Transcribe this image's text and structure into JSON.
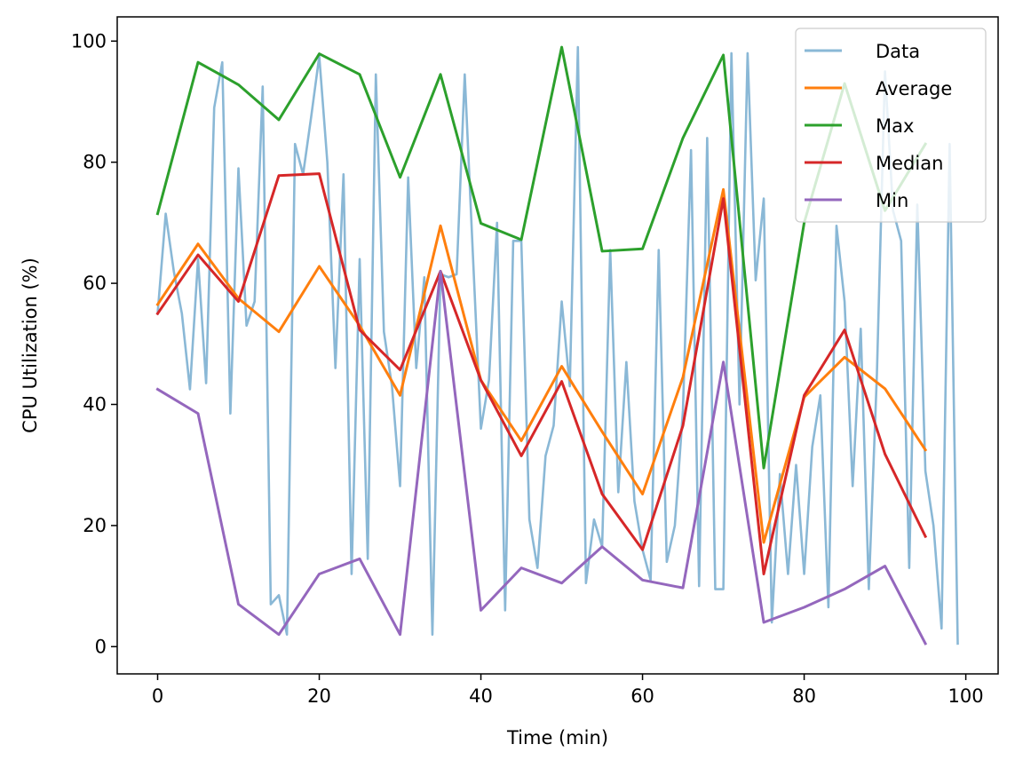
{
  "chart_data": {
    "type": "line",
    "title": "",
    "xlabel": "Time (min)",
    "ylabel": "CPU Utilization (%)",
    "xlim": [
      -5,
      104
    ],
    "ylim": [
      -4.5,
      104
    ],
    "xticks": [
      0,
      20,
      40,
      60,
      80,
      100
    ],
    "yticks": [
      0,
      20,
      40,
      60,
      80,
      100
    ],
    "grid": false,
    "legend_position": "top-right",
    "series": [
      {
        "name": "Data",
        "color": "#8ab8d6",
        "x": [
          0,
          1,
          2,
          3,
          4,
          5,
          6,
          7,
          8,
          9,
          10,
          11,
          12,
          13,
          14,
          15,
          16,
          17,
          18,
          19,
          20,
          21,
          22,
          23,
          24,
          25,
          26,
          27,
          28,
          29,
          30,
          31,
          32,
          33,
          34,
          35,
          36,
          37,
          38,
          39,
          40,
          41,
          42,
          43,
          44,
          45,
          46,
          47,
          48,
          49,
          50,
          51,
          52,
          53,
          54,
          55,
          56,
          57,
          58,
          59,
          60,
          61,
          62,
          63,
          64,
          65,
          66,
          67,
          68,
          69,
          70,
          71,
          72,
          73,
          74,
          75,
          76,
          77,
          78,
          79,
          80,
          81,
          82,
          83,
          84,
          85,
          86,
          87,
          88,
          89,
          90,
          91,
          92,
          93,
          94,
          95,
          96,
          97,
          98,
          99
        ],
        "values": [
          55,
          71.5,
          62,
          55,
          42.5,
          64,
          43.5,
          89,
          96.5,
          38.5,
          79,
          53,
          57,
          92.5,
          7,
          8.5,
          2,
          83,
          78,
          87.5,
          97.5,
          80,
          46,
          78,
          12,
          64,
          14.5,
          94.5,
          52,
          43,
          26.5,
          77.5,
          46,
          61,
          2,
          61.5,
          61,
          61.5,
          94.5,
          65,
          36,
          44,
          70,
          6,
          67,
          67,
          21,
          13,
          31.5,
          36.5,
          57,
          43,
          99,
          10.5,
          21,
          16.5,
          65.5,
          25.5,
          47,
          24,
          16,
          11,
          65.5,
          14,
          20,
          39,
          82,
          10,
          84,
          9.5,
          9.5,
          98,
          40,
          98,
          60.5,
          74,
          4,
          28.5,
          12,
          30,
          12,
          33,
          41.5,
          6.5,
          69.5,
          57,
          26.5,
          52.5,
          9.5,
          45,
          95,
          72,
          67,
          13,
          73,
          29,
          20,
          3,
          83,
          0.5
        ]
      },
      {
        "name": "Average",
        "color": "#ff7f0e",
        "x": [
          0,
          5,
          10,
          15,
          20,
          25,
          30,
          35,
          40,
          45,
          50,
          55,
          60,
          65,
          70,
          75,
          80,
          85,
          90,
          95
        ],
        "values": [
          56.5,
          66.5,
          57.5,
          52,
          62.8,
          53,
          41.5,
          69.5,
          44,
          34,
          46.3,
          35.5,
          25.2,
          44.5,
          75.5,
          17.2,
          41.2,
          47.8,
          42.6,
          32.5
        ]
      },
      {
        "name": "Max",
        "color": "#2ca02c",
        "x": [
          0,
          5,
          10,
          15,
          20,
          25,
          30,
          35,
          40,
          45,
          50,
          55,
          60,
          65,
          70,
          75,
          80,
          85,
          90,
          95
        ],
        "values": [
          71.5,
          96.5,
          92.8,
          87,
          97.9,
          94.5,
          77.5,
          94.5,
          69.9,
          67.2,
          99,
          65.3,
          65.7,
          84,
          97.7,
          29.5,
          70,
          93,
          72,
          83
        ]
      },
      {
        "name": "Median",
        "color": "#d62728",
        "x": [
          0,
          5,
          10,
          15,
          20,
          25,
          30,
          35,
          40,
          45,
          50,
          55,
          60,
          65,
          70,
          75,
          80,
          85,
          90,
          95
        ],
        "values": [
          55,
          64.7,
          57,
          77.8,
          78.1,
          52.3,
          45.7,
          62,
          44,
          31.5,
          43.8,
          25.2,
          16,
          36.5,
          74,
          12,
          41.5,
          52.3,
          31.8,
          18.2
        ]
      },
      {
        "name": "Min",
        "color": "#9467bd",
        "x": [
          0,
          5,
          10,
          15,
          20,
          25,
          30,
          35,
          40,
          45,
          50,
          55,
          60,
          65,
          70,
          75,
          80,
          85,
          90,
          95
        ],
        "values": [
          42.5,
          38.5,
          7,
          2,
          12,
          14.5,
          2,
          62,
          6,
          13,
          10.5,
          16.5,
          11,
          9.7,
          47,
          4,
          6.5,
          9.5,
          13.3,
          0.5
        ]
      }
    ]
  }
}
